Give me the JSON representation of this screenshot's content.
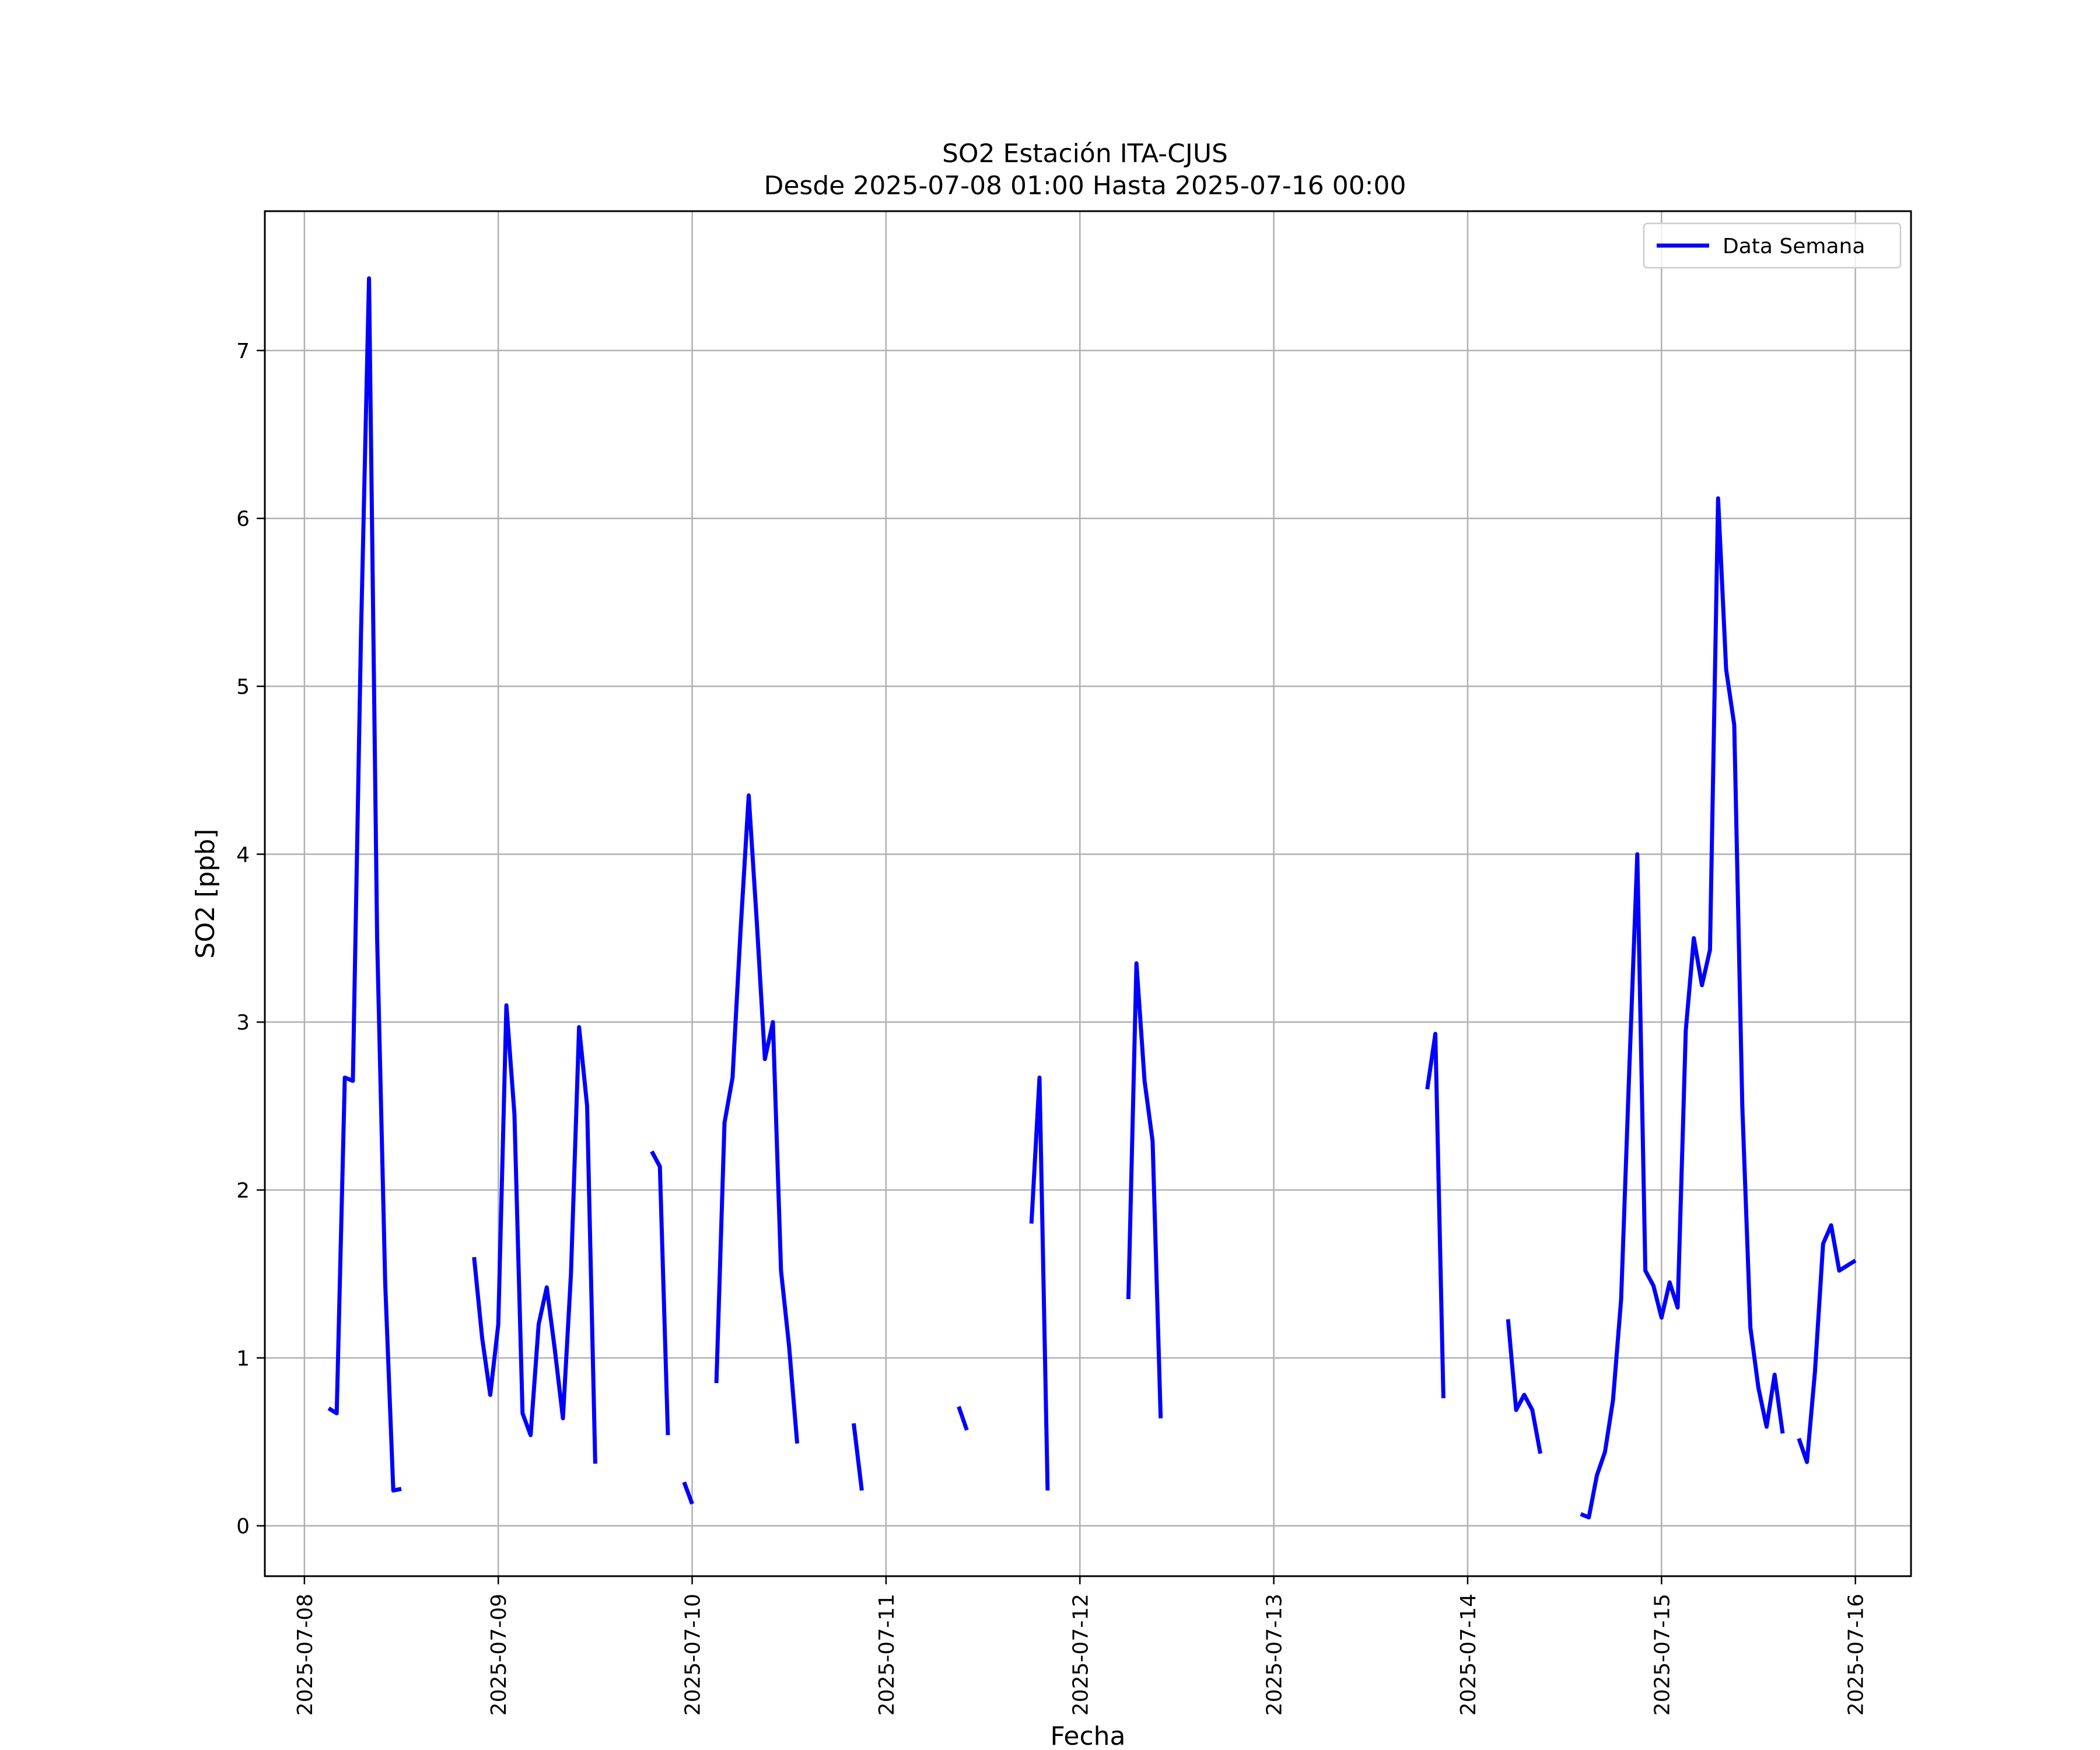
{
  "chart_data": {
    "type": "line",
    "title": "SO2 Estación ITA-CJUS",
    "subtitle": "Desde 2025-07-08 01:00 Hasta 2025-07-16 00:00",
    "xlabel": "Fecha",
    "ylabel": "SO2 [ppb]",
    "ylim": [
      -0.3,
      7.83
    ],
    "xlim": [
      "2025-07-07 19:06",
      "2025-07-16 06:53"
    ],
    "x_ticks": [
      "2025-07-08",
      "2025-07-09",
      "2025-07-10",
      "2025-07-11",
      "2025-07-12",
      "2025-07-13",
      "2025-07-14",
      "2025-07-15",
      "2025-07-16"
    ],
    "y_ticks": [
      0,
      1,
      2,
      3,
      4,
      5,
      6,
      7
    ],
    "grid": true,
    "legend_position": "top-right",
    "series": [
      {
        "name": "Data Semana",
        "color": "#0000ff",
        "points": [
          [
            "2025-07-08 03:00",
            0.7
          ],
          [
            "2025-07-08 04:00",
            0.67
          ],
          [
            "2025-07-08 05:00",
            2.67
          ],
          [
            "2025-07-08 06:00",
            2.65
          ],
          [
            "2025-07-08 07:00",
            5.3
          ],
          [
            "2025-07-08 08:00",
            7.43
          ],
          [
            "2025-07-08 09:00",
            3.5
          ],
          [
            "2025-07-08 10:00",
            1.45
          ],
          [
            "2025-07-08 11:00",
            0.21
          ],
          [
            "2025-07-08 12:00",
            0.22
          ],
          [
            "2025-07-08 13:00",
            null
          ],
          [
            "2025-07-08 21:00",
            1.6
          ],
          [
            "2025-07-08 22:00",
            1.12
          ],
          [
            "2025-07-08 23:00",
            0.78
          ],
          [
            "2025-07-09 00:00",
            1.2
          ],
          [
            "2025-07-09 01:00",
            3.1
          ],
          [
            "2025-07-09 02:00",
            2.45
          ],
          [
            "2025-07-09 03:00",
            0.67
          ],
          [
            "2025-07-09 04:00",
            0.54
          ],
          [
            "2025-07-09 05:00",
            1.2
          ],
          [
            "2025-07-09 06:00",
            1.42
          ],
          [
            "2025-07-09 07:00",
            1.05
          ],
          [
            "2025-07-09 08:00",
            0.64
          ],
          [
            "2025-07-09 09:00",
            1.5
          ],
          [
            "2025-07-09 10:00",
            2.97
          ],
          [
            "2025-07-09 11:00",
            2.5
          ],
          [
            "2025-07-09 12:00",
            0.37
          ],
          [
            "2025-07-09 13:00",
            null
          ],
          [
            "2025-07-09 19:00",
            2.23
          ],
          [
            "2025-07-09 20:00",
            2.14
          ],
          [
            "2025-07-09 21:00",
            0.54
          ],
          [
            "2025-07-09 22:00",
            null
          ],
          [
            "2025-07-09 23:00",
            0.26
          ],
          [
            "2025-07-10 00:00",
            0.13
          ],
          [
            "2025-07-10 01:00",
            null
          ],
          [
            "2025-07-10 03:00",
            0.85
          ],
          [
            "2025-07-10 04:00",
            2.4
          ],
          [
            "2025-07-10 05:00",
            2.67
          ],
          [
            "2025-07-10 06:00",
            3.55
          ],
          [
            "2025-07-10 07:00",
            4.35
          ],
          [
            "2025-07-10 08:00",
            3.6
          ],
          [
            "2025-07-10 09:00",
            2.78
          ],
          [
            "2025-07-10 10:00",
            3.0
          ],
          [
            "2025-07-10 11:00",
            1.52
          ],
          [
            "2025-07-10 12:00",
            1.07
          ],
          [
            "2025-07-10 13:00",
            0.49
          ],
          [
            "2025-07-10 14:00",
            null
          ],
          [
            "2025-07-10 20:00",
            0.61
          ],
          [
            "2025-07-10 21:00",
            0.21
          ],
          [
            "2025-07-10 22:00",
            null
          ],
          [
            "2025-07-11 09:00",
            0.71
          ],
          [
            "2025-07-11 10:00",
            0.57
          ],
          [
            "2025-07-11 11:00",
            null
          ],
          [
            "2025-07-11 18:00",
            1.8
          ],
          [
            "2025-07-11 19:00",
            2.67
          ],
          [
            "2025-07-11 20:00",
            0.21
          ],
          [
            "2025-07-11 21:00",
            null
          ],
          [
            "2025-07-12 06:00",
            1.35
          ],
          [
            "2025-07-12 07:00",
            3.35
          ],
          [
            "2025-07-12 08:00",
            2.65
          ],
          [
            "2025-07-12 09:00",
            2.29
          ],
          [
            "2025-07-12 10:00",
            0.64
          ],
          [
            "2025-07-12 11:00",
            null
          ],
          [
            "2025-07-13 19:00",
            2.6
          ],
          [
            "2025-07-13 20:00",
            2.93
          ],
          [
            "2025-07-13 21:00",
            0.76
          ],
          [
            "2025-07-13 22:00",
            null
          ],
          [
            "2025-07-14 05:00",
            1.23
          ],
          [
            "2025-07-14 06:00",
            0.69
          ],
          [
            "2025-07-14 07:00",
            0.78
          ],
          [
            "2025-07-14 08:00",
            0.69
          ],
          [
            "2025-07-14 09:00",
            0.43
          ],
          [
            "2025-07-14 10:00",
            null
          ],
          [
            "2025-07-14 14:00",
            0.07
          ],
          [
            "2025-07-14 15:00",
            0.05
          ],
          [
            "2025-07-14 16:00",
            0.3
          ],
          [
            "2025-07-14 17:00",
            0.44
          ],
          [
            "2025-07-14 18:00",
            0.75
          ],
          [
            "2025-07-14 19:00",
            1.35
          ],
          [
            "2025-07-14 20:00",
            2.7
          ],
          [
            "2025-07-14 21:00",
            4.0
          ],
          [
            "2025-07-14 22:00",
            1.52
          ],
          [
            "2025-07-14 23:00",
            1.43
          ],
          [
            "2025-07-15 00:00",
            1.24
          ],
          [
            "2025-07-15 01:00",
            1.45
          ],
          [
            "2025-07-15 02:00",
            1.3
          ],
          [
            "2025-07-15 03:00",
            2.95
          ],
          [
            "2025-07-15 04:00",
            3.5
          ],
          [
            "2025-07-15 05:00",
            3.22
          ],
          [
            "2025-07-15 06:00",
            3.43
          ],
          [
            "2025-07-15 07:00",
            6.12
          ],
          [
            "2025-07-15 08:00",
            5.1
          ],
          [
            "2025-07-15 09:00",
            4.77
          ],
          [
            "2025-07-15 10:00",
            2.5
          ],
          [
            "2025-07-15 11:00",
            1.18
          ],
          [
            "2025-07-15 12:00",
            0.82
          ],
          [
            "2025-07-15 13:00",
            0.59
          ],
          [
            "2025-07-15 14:00",
            0.9
          ],
          [
            "2025-07-15 15:00",
            0.55
          ],
          [
            "2025-07-15 16:00",
            null
          ],
          [
            "2025-07-15 17:00",
            0.52
          ],
          [
            "2025-07-15 18:00",
            0.38
          ],
          [
            "2025-07-15 19:00",
            0.92
          ],
          [
            "2025-07-15 20:00",
            1.68
          ],
          [
            "2025-07-15 21:00",
            1.79
          ],
          [
            "2025-07-15 22:00",
            1.52
          ],
          [
            "2025-07-15 23:00",
            1.55
          ],
          [
            "2025-07-16 00:00",
            1.58
          ]
        ]
      }
    ]
  }
}
